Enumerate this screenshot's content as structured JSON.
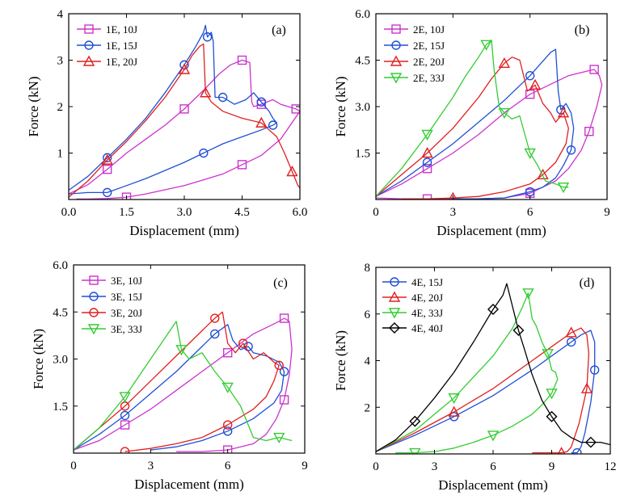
{
  "figure": {
    "xlabel": "Displacement (mm)",
    "ylabel": "Force (kN)"
  },
  "chart_data": [
    {
      "type": "line",
      "panel_label": "(a)",
      "xlabel": "Displacement (mm)",
      "ylabel": "Force (kN)",
      "xlim": [
        0.0,
        6.0
      ],
      "ylim": [
        0,
        4
      ],
      "xticks": [
        0.0,
        1.5,
        3.0,
        4.5,
        6.0
      ],
      "xtick_labels": [
        "0.0",
        "1.5",
        "3.0",
        "4.5",
        "6.0"
      ],
      "yticks": [
        1,
        2,
        3,
        4
      ],
      "ytick_labels": [
        "1",
        "2",
        "3",
        "4"
      ],
      "legend_position": "top-left",
      "series": [
        {
          "name": "1E, 10J",
          "color": "#cc33cc",
          "marker": "square",
          "x": [
            0.0,
            0.5,
            1.0,
            1.5,
            2.0,
            2.5,
            3.0,
            3.5,
            3.9,
            4.2,
            4.5,
            4.7,
            4.75,
            4.8,
            5.0,
            5.3,
            5.5,
            5.7,
            5.9,
            6.0,
            5.5,
            5.0,
            4.5,
            4.0,
            3.0,
            2.0,
            1.5,
            1.0,
            0.5,
            0.2
          ],
          "y": [
            0.12,
            0.32,
            0.65,
            1.0,
            1.3,
            1.6,
            1.95,
            2.35,
            2.7,
            2.9,
            3.0,
            2.95,
            2.1,
            2.0,
            2.05,
            2.15,
            2.05,
            2.0,
            1.95,
            1.9,
            1.3,
            0.95,
            0.75,
            0.55,
            0.3,
            0.12,
            0.05,
            0.02,
            0.01,
            0.01
          ]
        },
        {
          "name": "1E, 15J",
          "color": "#1f4fd6",
          "marker": "circle",
          "x": [
            0.0,
            0.5,
            1.0,
            1.5,
            2.0,
            2.5,
            3.0,
            3.3,
            3.5,
            3.55,
            3.6,
            3.7,
            3.75,
            3.8,
            4.0,
            4.3,
            4.6,
            4.8,
            5.0,
            5.2,
            5.3,
            5.4,
            5.3,
            5.0,
            4.5,
            4.0,
            3.5,
            3.0,
            2.0,
            1.5,
            1.0,
            0.5,
            0.0
          ],
          "y": [
            0.2,
            0.5,
            0.9,
            1.3,
            1.75,
            2.3,
            2.9,
            3.3,
            3.6,
            3.75,
            3.5,
            3.6,
            3.4,
            2.2,
            2.2,
            2.05,
            2.15,
            2.3,
            2.1,
            1.9,
            1.75,
            1.65,
            1.6,
            1.5,
            1.35,
            1.2,
            1.0,
            0.8,
            0.45,
            0.3,
            0.15,
            0.15,
            0.12
          ]
        },
        {
          "name": "1E, 20J",
          "color": "#e02020",
          "marker": "triangle-up",
          "x": [
            0.0,
            0.5,
            1.0,
            1.5,
            2.0,
            2.5,
            3.0,
            3.2,
            3.4,
            3.5,
            3.55,
            3.7,
            4.0,
            4.5,
            5.0,
            5.2,
            5.4,
            5.6,
            5.8,
            5.95,
            6.0
          ],
          "y": [
            0.05,
            0.4,
            0.85,
            1.25,
            1.7,
            2.2,
            2.8,
            3.1,
            3.3,
            3.35,
            2.3,
            2.1,
            1.9,
            1.75,
            1.65,
            1.5,
            1.35,
            1.0,
            0.6,
            0.3,
            0.25
          ]
        }
      ]
    },
    {
      "type": "line",
      "panel_label": "(b)",
      "xlabel": "Displacement (mm)",
      "ylabel": "Force (kN)",
      "xlim": [
        0,
        9
      ],
      "ylim": [
        0,
        6.0
      ],
      "xticks": [
        0,
        3,
        6,
        9
      ],
      "xtick_labels": [
        "0",
        "3",
        "6",
        "9"
      ],
      "yticks": [
        1.5,
        3.0,
        4.5,
        6.0
      ],
      "ytick_labels": [
        "1.5",
        "3.0",
        "4.5",
        "6.0"
      ],
      "legend_position": "top-left",
      "series": [
        {
          "name": "2E, 10J",
          "color": "#cc33cc",
          "marker": "square",
          "x": [
            0.0,
            1.0,
            2.0,
            3.0,
            4.0,
            5.0,
            6.0,
            7.0,
            7.5,
            8.0,
            8.5,
            8.7,
            8.8,
            8.6,
            8.3,
            8.0,
            7.5,
            7.0,
            6.0,
            5.0,
            4.0,
            3.0,
            2.0,
            1.0,
            0.0
          ],
          "y": [
            0.1,
            0.5,
            1.0,
            1.5,
            2.1,
            2.8,
            3.4,
            3.8,
            4.0,
            4.1,
            4.2,
            4.0,
            3.7,
            3.0,
            2.2,
            1.6,
            1.0,
            0.6,
            0.2,
            0.05,
            0.02,
            0.02,
            0.02,
            0.02,
            0.05
          ]
        },
        {
          "name": "2E, 15J",
          "color": "#1f4fd6",
          "marker": "circle",
          "x": [
            0.0,
            1.0,
            2.0,
            3.0,
            4.0,
            5.0,
            6.0,
            6.8,
            7.0,
            7.1,
            7.2,
            7.4,
            7.6,
            7.7,
            7.6,
            7.3,
            7.0,
            6.5,
            6.0,
            5.0,
            4.0,
            3.0
          ],
          "y": [
            0.1,
            0.6,
            1.2,
            1.8,
            2.5,
            3.2,
            4.0,
            4.75,
            4.85,
            3.5,
            2.9,
            3.1,
            2.8,
            2.3,
            1.6,
            1.1,
            0.7,
            0.4,
            0.25,
            0.05,
            0.02,
            0.02
          ]
        },
        {
          "name": "2E, 20J",
          "color": "#e02020",
          "marker": "triangle-up",
          "x": [
            0.0,
            1.0,
            2.0,
            3.0,
            4.0,
            4.5,
            5.0,
            5.3,
            5.6,
            5.9,
            6.2,
            6.5,
            6.8,
            7.0,
            7.3,
            7.5,
            7.4,
            7.0,
            6.5,
            6.0,
            5.0,
            4.0,
            3.0,
            2.0,
            1.0
          ],
          "y": [
            0.1,
            0.8,
            1.5,
            2.3,
            3.3,
            3.9,
            4.4,
            4.6,
            4.5,
            3.5,
            3.7,
            3.1,
            2.8,
            2.5,
            2.8,
            2.3,
            1.8,
            1.2,
            0.8,
            0.5,
            0.25,
            0.1,
            0.05,
            0.02,
            0.02
          ]
        },
        {
          "name": "2E, 33J",
          "color": "#33cc33",
          "marker": "triangle-down",
          "x": [
            0.0,
            1.0,
            2.0,
            3.0,
            3.5,
            4.0,
            4.3,
            4.5,
            4.6,
            4.8,
            5.0,
            5.3,
            5.6,
            5.8,
            6.0,
            6.3,
            6.6,
            7.0,
            7.3,
            7.5
          ],
          "y": [
            0.1,
            1.0,
            2.1,
            3.3,
            4.0,
            4.6,
            5.0,
            5.15,
            4.2,
            3.0,
            2.8,
            2.6,
            2.7,
            2.1,
            1.5,
            1.1,
            0.6,
            0.5,
            0.4,
            0.4
          ]
        }
      ]
    },
    {
      "type": "line",
      "panel_label": "(c)",
      "xlabel": "Displacement (mm)",
      "ylabel": "Force (kN)",
      "xlim": [
        0,
        9
      ],
      "ylim": [
        0,
        6.0
      ],
      "xticks": [
        0,
        3,
        6,
        9
      ],
      "xtick_labels": [
        "0",
        "3",
        "6",
        "9"
      ],
      "yticks": [
        1.5,
        3.0,
        4.5,
        6.0
      ],
      "ytick_labels": [
        "1.5",
        "3.0",
        "4.5",
        "6.0"
      ],
      "legend_position": "top-left",
      "series": [
        {
          "name": "3E, 10J",
          "color": "#cc33cc",
          "marker": "square",
          "x": [
            0.0,
            1.0,
            2.0,
            3.0,
            4.0,
            5.0,
            6.0,
            7.0,
            7.5,
            8.0,
            8.2,
            8.4,
            8.5,
            8.4,
            8.2,
            7.9,
            7.5,
            7.0,
            6.0,
            5.0,
            4.0
          ],
          "y": [
            0.1,
            0.4,
            0.9,
            1.4,
            2.0,
            2.6,
            3.2,
            3.8,
            4.0,
            4.2,
            4.3,
            4.2,
            3.3,
            2.5,
            1.7,
            1.1,
            0.6,
            0.3,
            0.1,
            0.05,
            0.05
          ]
        },
        {
          "name": "3E, 15J",
          "color": "#1f4fd6",
          "marker": "circle",
          "x": [
            0.0,
            1.0,
            2.0,
            3.0,
            4.0,
            5.0,
            5.5,
            6.0,
            6.2,
            6.5,
            6.8,
            7.0,
            7.5,
            8.0,
            8.2,
            8.1,
            7.8,
            7.0,
            6.0,
            5.0,
            4.0,
            3.0
          ],
          "y": [
            0.1,
            0.6,
            1.2,
            1.9,
            2.6,
            3.4,
            3.8,
            4.1,
            3.6,
            3.3,
            3.4,
            3.2,
            3.1,
            2.9,
            2.6,
            2.0,
            1.6,
            1.1,
            0.7,
            0.4,
            0.2,
            0.1
          ]
        },
        {
          "name": "3E, 20J",
          "color": "#e02020",
          "marker": "circle",
          "x": [
            0.0,
            1.0,
            2.0,
            3.0,
            4.0,
            5.0,
            5.5,
            5.8,
            6.0,
            6.3,
            6.6,
            7.0,
            7.4,
            7.8,
            8.0,
            7.8,
            7.5,
            7.0,
            6.0,
            5.0,
            4.0,
            3.0,
            2.0
          ],
          "y": [
            0.1,
            0.8,
            1.5,
            2.3,
            3.1,
            3.9,
            4.3,
            4.5,
            3.5,
            3.2,
            3.5,
            3.0,
            3.2,
            2.9,
            2.8,
            2.3,
            1.8,
            1.4,
            0.9,
            0.5,
            0.3,
            0.15,
            0.05
          ]
        },
        {
          "name": "3E, 33J",
          "color": "#33cc33",
          "marker": "triangle-down",
          "x": [
            0.0,
            1.0,
            2.0,
            3.0,
            3.5,
            4.0,
            4.2,
            4.5,
            5.0,
            5.5,
            6.0,
            6.5,
            7.0,
            7.5,
            8.0,
            8.5
          ],
          "y": [
            0.1,
            0.8,
            1.8,
            3.0,
            3.6,
            4.2,
            3.3,
            3.0,
            3.2,
            2.6,
            2.1,
            1.5,
            0.5,
            0.4,
            0.5,
            0.4
          ]
        }
      ]
    },
    {
      "type": "line",
      "panel_label": "(d)",
      "xlabel": "Displacement (mm)",
      "ylabel": "Force (kN)",
      "xlim": [
        0,
        12
      ],
      "ylim": [
        0,
        8
      ],
      "xticks": [
        0,
        3,
        6,
        9,
        12
      ],
      "xtick_labels": [
        "0",
        "3",
        "6",
        "9",
        "12"
      ],
      "yticks": [
        2,
        4,
        6,
        8
      ],
      "ytick_labels": [
        "2",
        "4",
        "6",
        "8"
      ],
      "legend_position": "top-left",
      "series": [
        {
          "name": "4E, 15J",
          "color": "#1f4fd6",
          "marker": "circle",
          "x": [
            0.0,
            2.0,
            4.0,
            6.0,
            8.0,
            9.0,
            10.0,
            10.5,
            11.0,
            11.2,
            11.2,
            11.0,
            10.7,
            10.5,
            10.3,
            10.0
          ],
          "y": [
            0.1,
            0.8,
            1.6,
            2.5,
            3.6,
            4.2,
            4.8,
            5.1,
            5.3,
            4.8,
            3.6,
            2.2,
            0.9,
            0.3,
            0.05,
            0.05
          ]
        },
        {
          "name": "4E, 20J",
          "color": "#e02020",
          "marker": "triangle-up",
          "x": [
            0.0,
            2.0,
            4.0,
            6.0,
            8.0,
            9.0,
            10.0,
            10.5,
            10.8,
            10.9,
            10.8,
            10.4,
            10.0,
            9.8,
            9.5,
            9.0,
            8.0
          ],
          "y": [
            0.1,
            0.9,
            1.8,
            2.8,
            4.0,
            4.6,
            5.2,
            5.4,
            5.1,
            4.3,
            2.8,
            1.3,
            0.3,
            0.1,
            0.05,
            0.05,
            0.05
          ]
        },
        {
          "name": "4E, 33J",
          "color": "#33cc33",
          "marker": "triangle-down",
          "x": [
            0.0,
            2.0,
            4.0,
            6.0,
            7.0,
            7.5,
            7.8,
            8.0,
            8.2,
            8.5,
            8.8,
            9.0,
            9.2,
            9.3,
            9.0,
            8.5,
            8.0,
            7.0,
            6.0,
            5.0,
            4.0,
            3.0,
            2.0,
            1.0
          ],
          "y": [
            0.1,
            1.0,
            2.4,
            4.2,
            5.4,
            6.3,
            6.9,
            5.8,
            5.5,
            4.8,
            4.3,
            3.6,
            3.5,
            3.2,
            2.6,
            2.1,
            1.7,
            1.2,
            0.8,
            0.5,
            0.25,
            0.1,
            0.05,
            0.05
          ]
        },
        {
          "name": "4E, 40J",
          "color": "#000000",
          "marker": "diamond",
          "x": [
            0.0,
            1.0,
            2.0,
            3.0,
            4.0,
            5.0,
            6.0,
            6.5,
            6.7,
            7.0,
            7.3,
            7.6,
            8.0,
            8.5,
            9.0,
            9.5,
            10.0,
            10.5,
            11.0,
            11.5,
            12.0
          ],
          "y": [
            0.1,
            0.6,
            1.4,
            2.4,
            3.5,
            4.8,
            6.2,
            6.8,
            7.3,
            6.3,
            5.3,
            4.5,
            3.4,
            2.3,
            1.6,
            1.0,
            0.7,
            0.5,
            0.5,
            0.5,
            0.4
          ]
        }
      ]
    }
  ]
}
